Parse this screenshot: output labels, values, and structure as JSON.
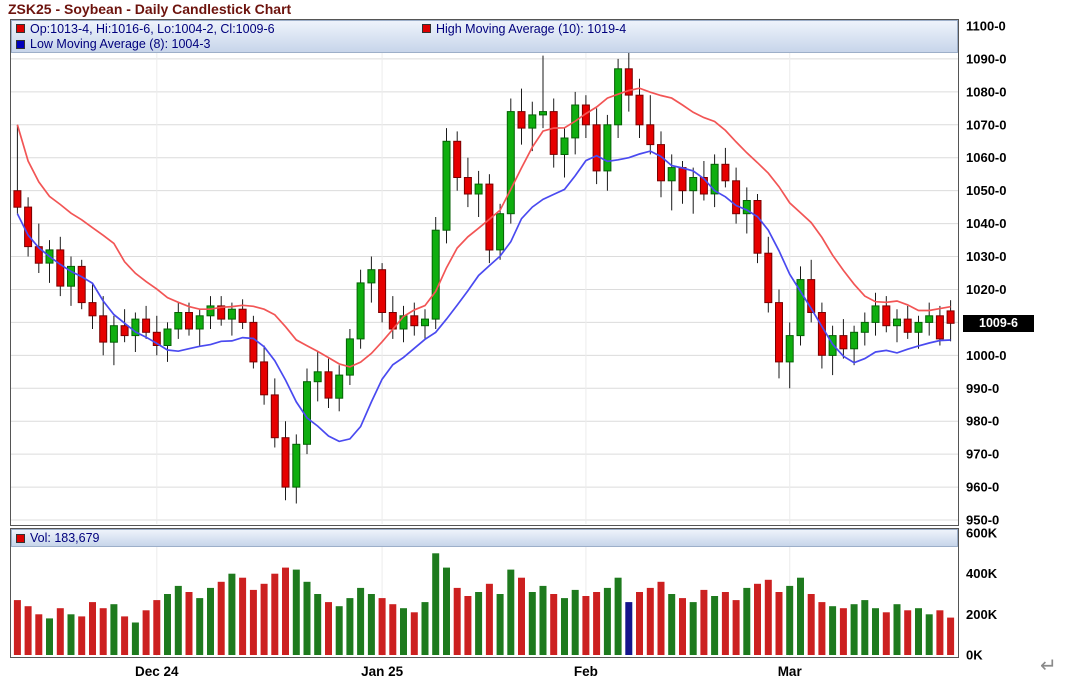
{
  "title": "ZSK25 - Soybean - Daily Candlestick Chart",
  "legend": {
    "ohlc": "Op:1013-4, Hi:1016-6, Lo:1004-2, Cl:1009-6",
    "high_ma": "High Moving Average (10): 1019-4",
    "low_ma": "Low Moving Average (8): 1004-3",
    "volume": "Vol: 183,679"
  },
  "last_price_label": "1009-6",
  "return_symbol": "↵",
  "colors": {
    "up": "#0fae0f",
    "up_border": "#046104",
    "down": "#e60000",
    "down_border": "#7a0000",
    "wick": "#1a1a1a",
    "high_ma": "#f25555",
    "low_ma": "#4a4af0",
    "vol_up": "#1e7a1e",
    "vol_down": "#cc2020",
    "vol_blue": "#14148c",
    "legend_text": "#00007d",
    "title_text": "#6d130d",
    "last_price_bg": "#000000",
    "last_price_fg": "#ffffff"
  },
  "y_axis": {
    "ticks": [
      {
        "label": "1100-0",
        "value": 1100
      },
      {
        "label": "1090-0",
        "value": 1090
      },
      {
        "label": "1080-0",
        "value": 1080
      },
      {
        "label": "1070-0",
        "value": 1070
      },
      {
        "label": "1060-0",
        "value": 1060
      },
      {
        "label": "1050-0",
        "value": 1050
      },
      {
        "label": "1040-0",
        "value": 1040
      },
      {
        "label": "1030-0",
        "value": 1030
      },
      {
        "label": "1020-0",
        "value": 1020
      },
      {
        "label": "1010-0",
        "value": 1010
      },
      {
        "label": "1000-0",
        "value": 1000
      },
      {
        "label": "990-0",
        "value": 990
      },
      {
        "label": "980-0",
        "value": 980
      },
      {
        "label": "970-0",
        "value": 970
      },
      {
        "label": "960-0",
        "value": 960
      },
      {
        "label": "950-0",
        "value": 950
      }
    ],
    "last_price_value": 1009.75
  },
  "volume_axis": {
    "ticks": [
      {
        "label": "600K",
        "value": 600
      },
      {
        "label": "400K",
        "value": 400
      },
      {
        "label": "200K",
        "value": 200
      },
      {
        "label": "0K",
        "value": 0
      }
    ]
  },
  "x_axis": {
    "ticks": [
      {
        "label": "Dec 24",
        "index": 13
      },
      {
        "label": "Jan 25",
        "index": 34
      },
      {
        "label": "Feb",
        "index": 53
      },
      {
        "label": "Mar",
        "index": 72
      }
    ]
  },
  "chart_data": {
    "type": "candlestick",
    "title": "ZSK25 - Soybean - Daily Candlestick Chart",
    "ylim": [
      950,
      1100
    ],
    "volume_ylim": [
      0,
      600
    ],
    "volume_unit": "K",
    "high_ma_period": 10,
    "low_ma_period": 8,
    "blue_volume_index": 57,
    "last_candle": {
      "open": "1013-4",
      "high": "1016-6",
      "low": "1004-2",
      "close": "1009-6",
      "volume": 183679
    },
    "candles": [
      [
        1050,
        1070,
        1043,
        1045,
        270
      ],
      [
        1045,
        1048,
        1030,
        1033,
        240
      ],
      [
        1033,
        1040,
        1025,
        1028,
        200
      ],
      [
        1028,
        1035,
        1022,
        1032,
        180
      ],
      [
        1032,
        1036,
        1018,
        1021,
        230
      ],
      [
        1021,
        1030,
        1015,
        1027,
        200
      ],
      [
        1027,
        1029,
        1014,
        1016,
        190
      ],
      [
        1016,
        1022,
        1008,
        1012,
        260
      ],
      [
        1012,
        1018,
        1000,
        1004,
        230
      ],
      [
        1004,
        1012,
        997,
        1009,
        250
      ],
      [
        1009,
        1014,
        1004,
        1006,
        190
      ],
      [
        1006,
        1013,
        1001,
        1011,
        160
      ],
      [
        1011,
        1015,
        1005,
        1007,
        220
      ],
      [
        1007,
        1012,
        1000,
        1003,
        270
      ],
      [
        1003,
        1010,
        998,
        1008,
        300
      ],
      [
        1008,
        1016,
        1005,
        1013,
        340
      ],
      [
        1013,
        1016,
        1006,
        1008,
        310
      ],
      [
        1008,
        1014,
        1003,
        1012,
        280
      ],
      [
        1012,
        1018,
        1008,
        1015,
        330
      ],
      [
        1015,
        1018,
        1009,
        1011,
        360
      ],
      [
        1011,
        1016,
        1006,
        1014,
        400
      ],
      [
        1014,
        1017,
        1008,
        1010,
        380
      ],
      [
        1010,
        1012,
        996,
        998,
        320
      ],
      [
        998,
        1003,
        985,
        988,
        350
      ],
      [
        988,
        993,
        972,
        975,
        400
      ],
      [
        975,
        980,
        956,
        960,
        430
      ],
      [
        960,
        976,
        955,
        973,
        420
      ],
      [
        973,
        996,
        970,
        992,
        360
      ],
      [
        992,
        1001,
        986,
        995,
        300
      ],
      [
        995,
        999,
        984,
        987,
        260
      ],
      [
        987,
        997,
        983,
        994,
        240
      ],
      [
        994,
        1008,
        991,
        1005,
        280
      ],
      [
        1005,
        1026,
        1002,
        1022,
        330
      ],
      [
        1022,
        1030,
        1016,
        1026,
        300
      ],
      [
        1026,
        1028,
        1010,
        1013,
        280
      ],
      [
        1013,
        1018,
        1005,
        1008,
        250
      ],
      [
        1008,
        1015,
        1004,
        1012,
        230
      ],
      [
        1012,
        1016,
        1006,
        1009,
        210
      ],
      [
        1009,
        1014,
        1005,
        1011,
        260
      ],
      [
        1011,
        1042,
        1008,
        1038,
        500
      ],
      [
        1038,
        1069,
        1034,
        1065,
        430
      ],
      [
        1065,
        1068,
        1050,
        1054,
        330
      ],
      [
        1054,
        1060,
        1045,
        1049,
        290
      ],
      [
        1049,
        1056,
        1042,
        1052,
        310
      ],
      [
        1052,
        1055,
        1028,
        1032,
        350
      ],
      [
        1032,
        1046,
        1029,
        1043,
        300
      ],
      [
        1043,
        1078,
        1040,
        1074,
        420
      ],
      [
        1074,
        1081,
        1064,
        1069,
        380
      ],
      [
        1069,
        1077,
        1062,
        1073,
        310
      ],
      [
        1073,
        1091,
        1069,
        1074,
        340
      ],
      [
        1074,
        1078,
        1057,
        1061,
        300
      ],
      [
        1061,
        1069,
        1054,
        1066,
        280
      ],
      [
        1066,
        1080,
        1061,
        1076,
        320
      ],
      [
        1076,
        1079,
        1066,
        1070,
        290
      ],
      [
        1070,
        1075,
        1052,
        1056,
        310
      ],
      [
        1056,
        1073,
        1050,
        1070,
        330
      ],
      [
        1070,
        1090,
        1066,
        1087,
        380
      ],
      [
        1087,
        1092,
        1074,
        1079,
        260
      ],
      [
        1079,
        1084,
        1066,
        1070,
        310
      ],
      [
        1070,
        1079,
        1061,
        1064,
        330
      ],
      [
        1064,
        1068,
        1048,
        1053,
        360
      ],
      [
        1053,
        1061,
        1044,
        1057,
        300
      ],
      [
        1057,
        1059,
        1046,
        1050,
        280
      ],
      [
        1050,
        1057,
        1043,
        1054,
        260
      ],
      [
        1054,
        1059,
        1047,
        1049,
        320
      ],
      [
        1049,
        1061,
        1045,
        1058,
        290
      ],
      [
        1058,
        1063,
        1051,
        1053,
        310
      ],
      [
        1053,
        1057,
        1040,
        1043,
        270
      ],
      [
        1043,
        1051,
        1037,
        1047,
        330
      ],
      [
        1047,
        1049,
        1028,
        1031,
        350
      ],
      [
        1031,
        1036,
        1013,
        1016,
        370
      ],
      [
        1016,
        1020,
        993,
        998,
        310
      ],
      [
        998,
        1010,
        990,
        1006,
        340
      ],
      [
        1006,
        1027,
        1003,
        1023,
        380
      ],
      [
        1023,
        1029,
        1010,
        1013,
        300
      ],
      [
        1013,
        1016,
        996,
        1000,
        260
      ],
      [
        1000,
        1009,
        994,
        1006,
        240
      ],
      [
        1006,
        1011,
        999,
        1002,
        230
      ],
      [
        1002,
        1009,
        997,
        1007,
        250
      ],
      [
        1007,
        1013,
        1003,
        1010,
        270
      ],
      [
        1010,
        1019,
        1006,
        1015,
        230
      ],
      [
        1015,
        1018,
        1007,
        1009,
        210
      ],
      [
        1009,
        1014,
        1004,
        1011,
        250
      ],
      [
        1011,
        1015,
        1005,
        1007,
        220
      ],
      [
        1007,
        1012,
        1002,
        1010,
        230
      ],
      [
        1010,
        1016,
        1006,
        1012,
        200
      ],
      [
        1012,
        1015,
        1003,
        1005,
        220
      ],
      [
        1013.5,
        1016.75,
        1004.25,
        1009.75,
        184
      ]
    ]
  }
}
